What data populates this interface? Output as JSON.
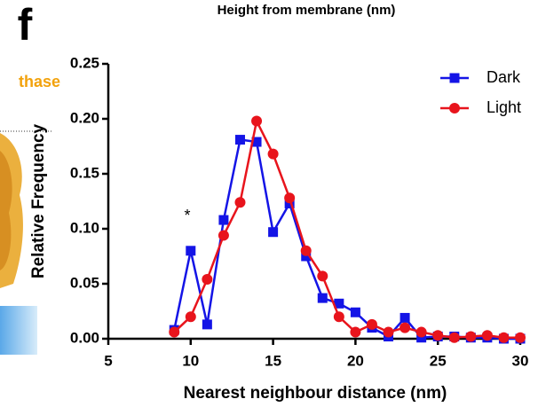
{
  "chart_data": {
    "type": "line",
    "panel_label": "f",
    "title": "Height from membrane (nm)",
    "side_text": "thase",
    "annotation": "*",
    "xlabel": "Nearest neighbour distance (nm)",
    "ylabel": "Relative Frequency",
    "x": [
      9,
      10,
      11,
      12,
      13,
      14,
      15,
      16,
      17,
      18,
      19,
      20,
      21,
      22,
      23,
      24,
      25,
      26,
      27,
      28,
      29,
      30
    ],
    "series": [
      {
        "name": "Dark",
        "color": "#1414e6",
        "marker": "square",
        "values": [
          0.008,
          0.08,
          0.013,
          0.108,
          0.181,
          0.179,
          0.097,
          0.123,
          0.075,
          0.037,
          0.032,
          0.024,
          0.01,
          0.002,
          0.019,
          0.001,
          0.002,
          0.002,
          0.001,
          0.001,
          0.0,
          0.0
        ]
      },
      {
        "name": "Light",
        "color": "#e8141c",
        "marker": "circle",
        "values": [
          0.006,
          0.02,
          0.054,
          0.094,
          0.124,
          0.198,
          0.168,
          0.128,
          0.08,
          0.057,
          0.02,
          0.006,
          0.013,
          0.006,
          0.01,
          0.006,
          0.003,
          0.001,
          0.002,
          0.003,
          0.001,
          0.001
        ]
      }
    ],
    "xlim": [
      5,
      30
    ],
    "xticks": [
      5,
      10,
      15,
      20,
      25,
      30
    ],
    "ylim": [
      0,
      0.25
    ],
    "yticks": [
      {
        "value": 0,
        "label": "0.00"
      },
      {
        "value": 0.05,
        "label": "0.05"
      },
      {
        "value": 0.1,
        "label": "0.10"
      },
      {
        "value": 0.15,
        "label": "0.15"
      },
      {
        "value": 0.2,
        "label": "0.20"
      },
      {
        "value": 0.25,
        "label": "0.25"
      }
    ],
    "legend": "upper right"
  }
}
